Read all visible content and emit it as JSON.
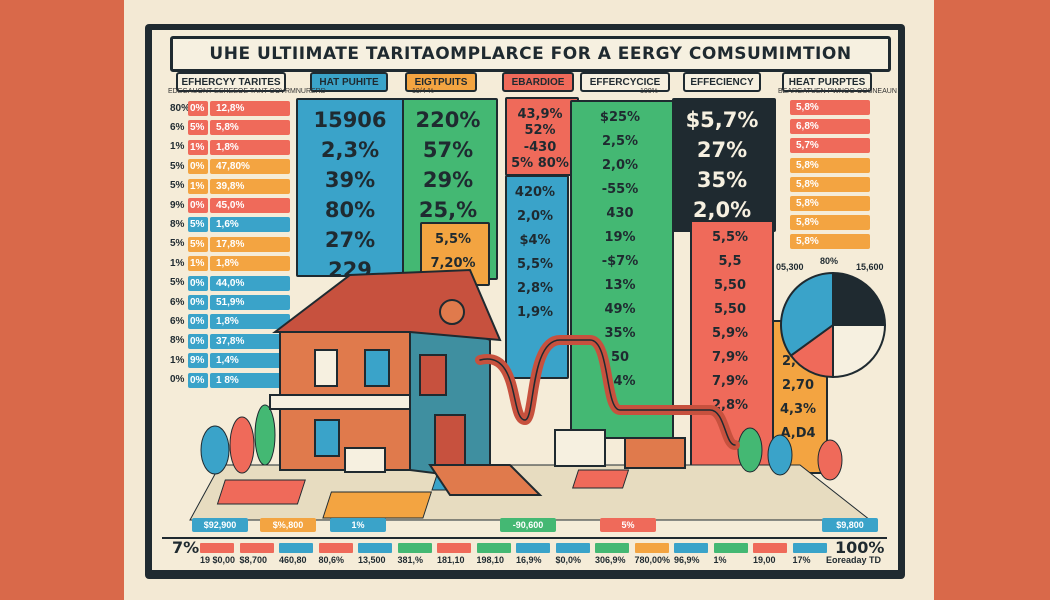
{
  "title": "UHE ULTIIMATE TARITAOMPLARCE FOR A EERGY COMSUMIMTION",
  "tabs": [
    {
      "label": "EFHERCYY TARITES",
      "color": "#f6f0e0"
    },
    {
      "label": "HAT PUHITE",
      "color": "#3aa3c9"
    },
    {
      "label": "EIGTPUITS",
      "color": "#f3a441"
    },
    {
      "label": "EBARDIOE",
      "color": "#ef6a5a"
    },
    {
      "label": "EFFERCYCICE",
      "color": "#f6f0e0"
    },
    {
      "label": "EFFECIENCY",
      "color": "#f6f0e0"
    },
    {
      "label": "HEAT PURPTES",
      "color": "#f6f0e0"
    }
  ],
  "subcaptions": {
    "left": "EDEGAUONT   ESREEOE TANT OOVRMNURERD",
    "bar2": "19/4   %",
    "bar5": "100%",
    "right": "BEARGATUEN PWNOO OOSNEAUN"
  },
  "left_rows": [
    {
      "pct": "80%",
      "box_pct": "0%",
      "value": "12,8%",
      "color": "#ef6a5a"
    },
    {
      "pct": "6%",
      "box_pct": "5%",
      "value": "5,8%",
      "color": "#ef6a5a"
    },
    {
      "pct": "1%",
      "box_pct": "1%",
      "value": "1,8%",
      "color": "#ef6a5a"
    },
    {
      "pct": "5%",
      "box_pct": "0%",
      "value": "47,80%",
      "color": "#f3a441"
    },
    {
      "pct": "5%",
      "box_pct": "1%",
      "value": "39,8%",
      "color": "#f3a441"
    },
    {
      "pct": "9%",
      "box_pct": "0%",
      "value": "45,0%",
      "color": "#ef6a5a"
    },
    {
      "pct": "8%",
      "box_pct": "5%",
      "value": "1,6%",
      "color": "#3aa3c9"
    },
    {
      "pct": "5%",
      "box_pct": "5%",
      "value": "17,8%",
      "color": "#f3a441"
    },
    {
      "pct": "1%",
      "box_pct": "1%",
      "value": "1,8%",
      "color": "#f3a441"
    },
    {
      "pct": "5%",
      "box_pct": "0%",
      "value": "44,0%",
      "color": "#3aa3c9"
    },
    {
      "pct": "6%",
      "box_pct": "0%",
      "value": "51,9%",
      "color": "#3aa3c9"
    },
    {
      "pct": "6%",
      "box_pct": "0%",
      "value": "1,8%",
      "color": "#3aa3c9"
    },
    {
      "pct": "8%",
      "box_pct": "0%",
      "value": "37,8%",
      "color": "#3aa3c9"
    },
    {
      "pct": "1%",
      "box_pct": "9%",
      "value": "1,4%",
      "color": "#3aa3c9"
    },
    {
      "pct": "0%",
      "box_pct": "0%",
      "value": "1 8%",
      "color": "#3aa3c9"
    }
  ],
  "bars": [
    {
      "name": "bar-1",
      "color": "#3aa3c9",
      "values": [
        "15906",
        "2,3%",
        "39%",
        "80%",
        "27%",
        "229"
      ],
      "size": "lg"
    },
    {
      "name": "bar-2",
      "color": "#44b873",
      "values": [
        "220%",
        "57%",
        "29%",
        "25,%"
      ],
      "size": "lg"
    },
    {
      "name": "bar-3",
      "color": "#f3a441",
      "values": [
        "5,5%",
        "7,20%"
      ],
      "size": "sm"
    },
    {
      "name": "bar-4",
      "color": "#ef6a5a",
      "values": [
        "43,9%",
        "52%",
        "-430",
        "5% 80%"
      ],
      "size": "sm"
    },
    {
      "name": "bar-5",
      "color": "#3aa3c9",
      "values": [
        "420%",
        "2,0%",
        "$4%",
        "5,5%",
        "2,8%",
        "1,9%"
      ],
      "size": "sm"
    },
    {
      "name": "bar-6",
      "color": "#44b873",
      "values": [
        "$25%",
        "2,5%",
        "2,0%",
        "-55%",
        "430",
        "19%",
        "-$7%",
        "13%",
        "49%",
        "35%",
        "50",
        "14%"
      ],
      "size": "sm"
    },
    {
      "name": "bar-7",
      "color": "#1f2a30",
      "values": [
        "$5,7%",
        "27%",
        "35%",
        "2,0%"
      ],
      "size": "lg"
    },
    {
      "name": "bar-8",
      "color": "#ef6a5a",
      "values": [
        "5,5%",
        "5,5",
        "5,50",
        "5,50",
        "5,9%",
        "7,9%",
        "7,9%",
        "2,8%"
      ],
      "size": "sm"
    },
    {
      "name": "bar-9",
      "color": "#f3a441",
      "values": [
        "20%",
        "2,00",
        "2,70",
        "4,3%",
        "A,D4"
      ],
      "size": "sm"
    }
  ],
  "right_rows": [
    {
      "value": "5,8%",
      "color": "#ef6a5a"
    },
    {
      "value": "6,8%",
      "color": "#ef6a5a"
    },
    {
      "value": "5,7%",
      "color": "#ef6a5a"
    },
    {
      "value": "5,8%",
      "color": "#f3a441"
    },
    {
      "value": "5,8%",
      "color": "#f3a441"
    },
    {
      "value": "5,8%",
      "color": "#f3a441"
    },
    {
      "value": "5,8%",
      "color": "#f3a441"
    },
    {
      "value": "5,8%",
      "color": "#f3a441"
    }
  ],
  "pie": {
    "labels": [
      "05,300",
      "80%",
      "15,600"
    ],
    "slices": [
      {
        "value": 25,
        "color": "#1f2a30"
      },
      {
        "value": 25,
        "color": "#f6f0e0"
      },
      {
        "value": 15,
        "color": "#ef6a5a"
      },
      {
        "value": 35,
        "color": "#3aa3c9"
      }
    ]
  },
  "footer": {
    "left_big": "7%",
    "right_big": "100%",
    "right_small": "Eoreaday  TD",
    "cells": [
      {
        "color": "#ef6a5a",
        "text": "19  $0,00"
      },
      {
        "color": "#ef6a5a",
        "text": "$8,700"
      },
      {
        "color": "#3aa3c9",
        "text": "460,80"
      },
      {
        "color": "#ef6a5a",
        "text": "80,6%"
      },
      {
        "color": "#3aa3c9",
        "text": "13,500"
      },
      {
        "color": "#44b873",
        "text": "381,%"
      },
      {
        "color": "#ef6a5a",
        "text": "181,10"
      },
      {
        "color": "#44b873",
        "text": "198,10"
      },
      {
        "color": "#3aa3c9",
        "text": "16,9%"
      },
      {
        "color": "#3aa3c9",
        "text": "$0,0%"
      },
      {
        "color": "#44b873",
        "text": "306,9%"
      },
      {
        "color": "#f3a441",
        "text": "780,00%"
      },
      {
        "color": "#3aa3c9",
        "text": "96,9%"
      },
      {
        "color": "#44b873",
        "text": "1%"
      },
      {
        "color": "#ef6a5a",
        "text": "19,00"
      },
      {
        "color": "#3aa3c9",
        "text": "17%"
      }
    ]
  },
  "bottom_chips": [
    {
      "text": "$92,900",
      "color": "#3aa3c9"
    },
    {
      "text": "$%,800",
      "color": "#f3a441"
    },
    {
      "text": "1%",
      "color": "#3aa3c9"
    },
    {
      "text": "-90,600",
      "color": "#44b873"
    },
    {
      "text": "5%",
      "color": "#ef6a5a"
    },
    {
      "text": "$9,800",
      "color": "#3aa3c9"
    }
  ]
}
